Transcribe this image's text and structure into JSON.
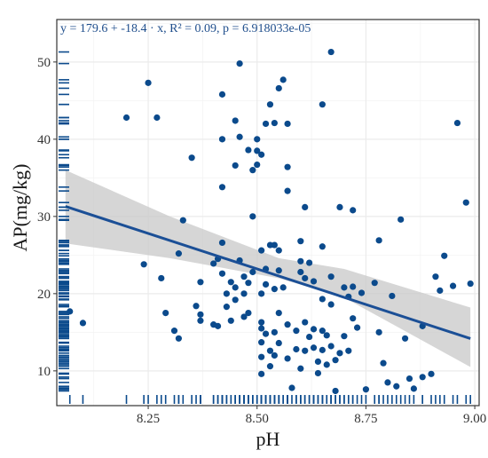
{
  "chart_data": {
    "type": "scatter",
    "xlabel": "pH",
    "ylabel": "AP(mg/kg)",
    "xlim": [
      8.04,
      9.01
    ],
    "ylim": [
      5.5,
      55.5
    ],
    "x_ticks": [
      "8.25",
      "8.50",
      "8.75",
      "9.00"
    ],
    "y_ticks": [
      "10",
      "20",
      "30",
      "40",
      "50"
    ],
    "annotation": "y = 179.6 + -18.4 · x,   R² = 0.09,   p = 6.918033e-05",
    "grid": true,
    "regression": {
      "intercept": 179.6,
      "slope": -18.4,
      "x_range": [
        8.06,
        8.99
      ],
      "ci_lower": [
        [
          8.06,
          26.5
        ],
        [
          8.3,
          24.6
        ],
        [
          8.55,
          22.0
        ],
        [
          8.7,
          19.5
        ],
        [
          8.99,
          10.5
        ]
      ],
      "ci_upper": [
        [
          8.06,
          36.0
        ],
        [
          8.3,
          30.0
        ],
        [
          8.55,
          24.6
        ],
        [
          8.7,
          23.2
        ],
        [
          8.99,
          18.2
        ]
      ]
    },
    "colors": {
      "points": "#0b4a8c",
      "line": "#1b4f96",
      "band": "#c8c8c8",
      "grid": "#ebebeb"
    },
    "series": [
      {
        "values": [
          [
            8.07,
            17.7
          ],
          [
            8.1,
            16.2
          ],
          [
            8.2,
            42.8
          ],
          [
            8.24,
            23.8
          ],
          [
            8.25,
            47.3
          ],
          [
            8.27,
            42.8
          ],
          [
            8.28,
            22.0
          ],
          [
            8.29,
            17.5
          ],
          [
            8.31,
            15.2
          ],
          [
            8.32,
            14.2
          ],
          [
            8.32,
            25.2
          ],
          [
            8.33,
            29.5
          ],
          [
            8.35,
            37.6
          ],
          [
            8.36,
            18.4
          ],
          [
            8.37,
            16.5
          ],
          [
            8.37,
            17.3
          ],
          [
            8.37,
            21.5
          ],
          [
            8.4,
            23.9
          ],
          [
            8.4,
            16.0
          ],
          [
            8.41,
            15.8
          ],
          [
            8.41,
            24.5
          ],
          [
            8.42,
            45.8
          ],
          [
            8.42,
            40.0
          ],
          [
            8.42,
            33.8
          ],
          [
            8.42,
            26.6
          ],
          [
            8.42,
            22.6
          ],
          [
            8.43,
            20.0
          ],
          [
            8.43,
            18.3
          ],
          [
            8.44,
            16.5
          ],
          [
            8.44,
            21.5
          ],
          [
            8.45,
            42.4
          ],
          [
            8.45,
            36.6
          ],
          [
            8.45,
            20.8
          ],
          [
            8.45,
            19.2
          ],
          [
            8.46,
            49.8
          ],
          [
            8.46,
            40.3
          ],
          [
            8.46,
            24.3
          ],
          [
            8.47,
            22.2
          ],
          [
            8.47,
            20.0
          ],
          [
            8.47,
            17.0
          ],
          [
            8.48,
            38.6
          ],
          [
            8.48,
            21.4
          ],
          [
            8.48,
            17.5
          ],
          [
            8.49,
            36.0
          ],
          [
            8.49,
            30.0
          ],
          [
            8.49,
            22.8
          ],
          [
            8.5,
            40.0
          ],
          [
            8.5,
            38.5
          ],
          [
            8.5,
            36.7
          ],
          [
            8.51,
            38.0
          ],
          [
            8.51,
            25.6
          ],
          [
            8.51,
            20.0
          ],
          [
            8.51,
            16.3
          ],
          [
            8.51,
            15.5
          ],
          [
            8.51,
            13.7
          ],
          [
            8.51,
            11.8
          ],
          [
            8.51,
            9.6
          ],
          [
            8.52,
            42.0
          ],
          [
            8.52,
            23.2
          ],
          [
            8.52,
            21.2
          ],
          [
            8.52,
            14.8
          ],
          [
            8.53,
            44.5
          ],
          [
            8.53,
            26.3
          ],
          [
            8.53,
            12.6
          ],
          [
            8.53,
            10.6
          ],
          [
            8.54,
            42.1
          ],
          [
            8.54,
            26.3
          ],
          [
            8.54,
            20.6
          ],
          [
            8.54,
            15.0
          ],
          [
            8.54,
            12.0
          ],
          [
            8.55,
            46.6
          ],
          [
            8.55,
            25.6
          ],
          [
            8.55,
            23.0
          ],
          [
            8.55,
            17.5
          ],
          [
            8.55,
            13.6
          ],
          [
            8.56,
            47.7
          ],
          [
            8.56,
            20.8
          ],
          [
            8.57,
            42.0
          ],
          [
            8.57,
            36.4
          ],
          [
            8.57,
            33.3
          ],
          [
            8.57,
            16.0
          ],
          [
            8.57,
            11.6
          ],
          [
            8.58,
            7.8
          ],
          [
            8.59,
            15.2
          ],
          [
            8.59,
            12.8
          ],
          [
            8.6,
            10.3
          ],
          [
            8.6,
            24.2
          ],
          [
            8.6,
            26.8
          ],
          [
            8.6,
            22.8
          ],
          [
            8.61,
            31.2
          ],
          [
            8.61,
            22.0
          ],
          [
            8.61,
            16.3
          ],
          [
            8.61,
            12.6
          ],
          [
            8.62,
            24.0
          ],
          [
            8.62,
            14.4
          ],
          [
            8.63,
            21.6
          ],
          [
            8.63,
            15.4
          ],
          [
            8.63,
            13.0
          ],
          [
            8.64,
            9.7
          ],
          [
            8.64,
            11.2
          ],
          [
            8.65,
            44.5
          ],
          [
            8.65,
            26.1
          ],
          [
            8.65,
            19.3
          ],
          [
            8.65,
            15.2
          ],
          [
            8.65,
            12.7
          ],
          [
            8.66,
            14.6
          ],
          [
            8.66,
            10.8
          ],
          [
            8.67,
            51.3
          ],
          [
            8.67,
            22.2
          ],
          [
            8.67,
            18.6
          ],
          [
            8.67,
            13.2
          ],
          [
            8.68,
            11.4
          ],
          [
            8.68,
            7.4
          ],
          [
            8.69,
            31.2
          ],
          [
            8.69,
            12.3
          ],
          [
            8.7,
            20.8
          ],
          [
            8.7,
            14.5
          ],
          [
            8.71,
            19.6
          ],
          [
            8.71,
            12.6
          ],
          [
            8.72,
            30.8
          ],
          [
            8.72,
            20.9
          ],
          [
            8.72,
            16.8
          ],
          [
            8.73,
            15.6
          ],
          [
            8.74,
            20.1
          ],
          [
            8.75,
            7.6
          ],
          [
            8.77,
            21.4
          ],
          [
            8.78,
            26.9
          ],
          [
            8.78,
            15.0
          ],
          [
            8.79,
            11.0
          ],
          [
            8.8,
            8.5
          ],
          [
            8.81,
            19.7
          ],
          [
            8.82,
            8.0
          ],
          [
            8.83,
            29.6
          ],
          [
            8.84,
            14.2
          ],
          [
            8.85,
            9.0
          ],
          [
            8.86,
            7.7
          ],
          [
            8.88,
            15.8
          ],
          [
            8.88,
            9.2
          ],
          [
            8.9,
            9.6
          ],
          [
            8.91,
            22.2
          ],
          [
            8.92,
            20.4
          ],
          [
            8.93,
            24.9
          ],
          [
            8.95,
            21.0
          ],
          [
            8.96,
            42.1
          ],
          [
            8.98,
            31.8
          ],
          [
            8.99,
            21.3
          ]
        ]
      }
    ]
  }
}
